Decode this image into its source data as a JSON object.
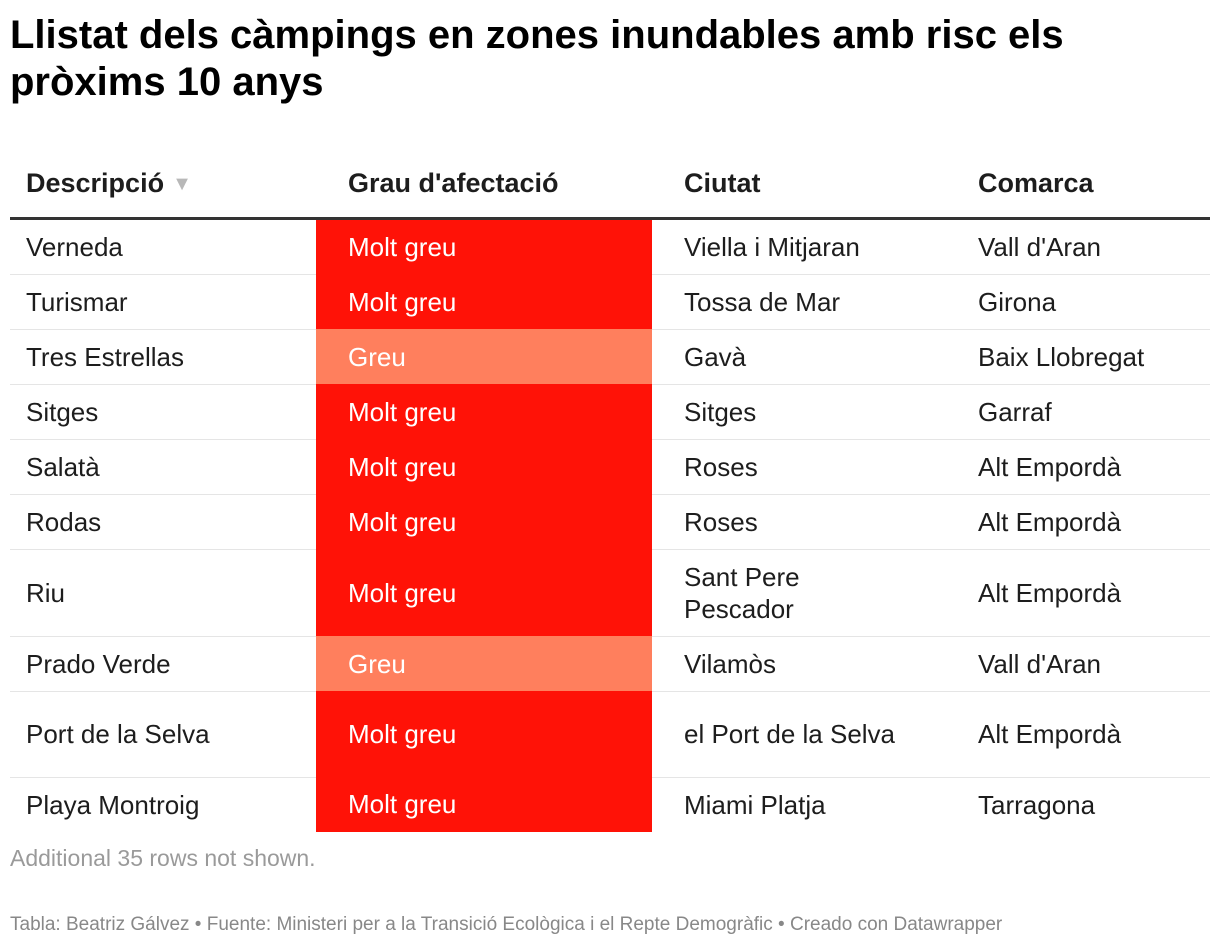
{
  "title": "Llistat dels càmpings en zones inundables amb risc els pròxims 10 anys",
  "chart_data": {
    "type": "table",
    "columns": [
      "Descripció",
      "Grau d'afectació",
      "Ciutat",
      "Comarca"
    ],
    "sort": {
      "column": "Descripció",
      "direction": "descending",
      "indicator": "▼"
    },
    "severity_colors": {
      "Molt greu": "#ff1207",
      "Greu": "#ff7f5d"
    },
    "rows": [
      {
        "descripcio": "Verneda",
        "grau": "Molt greu",
        "ciutat": "Viella i Mitjaran",
        "comarca": "Vall d'Aran"
      },
      {
        "descripcio": "Turismar",
        "grau": "Molt greu",
        "ciutat": "Tossa de Mar",
        "comarca": "Girona"
      },
      {
        "descripcio": "Tres Estrellas",
        "grau": "Greu",
        "ciutat": "Gavà",
        "comarca": "Baix Llobregat"
      },
      {
        "descripcio": "Sitges",
        "grau": "Molt greu",
        "ciutat": "Sitges",
        "comarca": "Garraf"
      },
      {
        "descripcio": "Salatà",
        "grau": "Molt greu",
        "ciutat": "Roses",
        "comarca": "Alt Empordà"
      },
      {
        "descripcio": "Rodas",
        "grau": "Molt greu",
        "ciutat": "Roses",
        "comarca": "Alt Empordà"
      },
      {
        "descripcio": "Riu",
        "grau": "Molt greu",
        "ciutat": "Sant Pere Pescador",
        "comarca": "Alt Empordà"
      },
      {
        "descripcio": "Prado Verde",
        "grau": "Greu",
        "ciutat": "Vilamòs",
        "comarca": "Vall d'Aran"
      },
      {
        "descripcio": "Port de la Selva",
        "grau": "Molt greu",
        "ciutat": "el Port de la Selva",
        "comarca": "Alt Empordà"
      },
      {
        "descripcio": "Playa Montroig",
        "grau": "Molt greu",
        "ciutat": "Miami Platja",
        "comarca": "Tarragona"
      }
    ]
  },
  "note": "Additional 35 rows not shown.",
  "footer": "Tabla: Beatriz Gálvez • Fuente: Ministeri per a la Transició Ecològica i el Repte Demogràfic • Creado con Datawrapper"
}
